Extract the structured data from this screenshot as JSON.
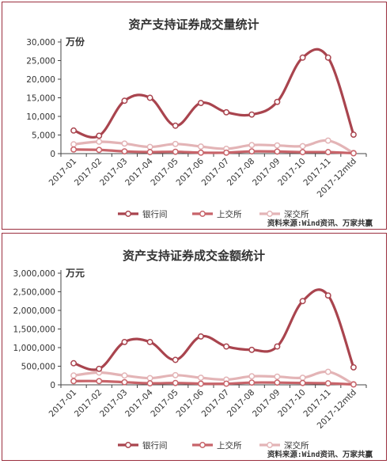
{
  "chart_data": [
    {
      "type": "line",
      "title": "资产支持证券成交量统计",
      "unit_label": "万份",
      "categories": [
        "2017-01",
        "2017-02",
        "2017-03",
        "2017-04",
        "2017-05",
        "2017-06",
        "2017-07",
        "2017-08",
        "2017-09",
        "2017-10",
        "2017-11",
        "2017-12mtd"
      ],
      "ylim": [
        0,
        30000
      ],
      "yticks": [
        "0",
        "5,000",
        "10,000",
        "15,000",
        "20,000",
        "25,000",
        "30,000"
      ],
      "ytick_values": [
        0,
        5000,
        10000,
        15000,
        20000,
        25000,
        30000
      ],
      "series": [
        {
          "name": "银行间",
          "color": "#a9444e",
          "values": [
            6200,
            4800,
            14200,
            15000,
            7500,
            13600,
            11100,
            10500,
            13900,
            25800,
            25800,
            5100
          ]
        },
        {
          "name": "上交所",
          "color": "#c8646a",
          "values": [
            1100,
            1000,
            600,
            400,
            500,
            250,
            250,
            600,
            550,
            400,
            400,
            100
          ]
        },
        {
          "name": "深交所",
          "color": "#e3b4b6",
          "values": [
            2500,
            3200,
            2700,
            1800,
            2600,
            1900,
            1300,
            2300,
            2200,
            2000,
            3500,
            200
          ]
        }
      ],
      "source": "资料来源:Wind资讯、万家共赢"
    },
    {
      "type": "line",
      "title": "资产支持证券成交金额统计",
      "unit_label": "万元",
      "categories": [
        "2017-01",
        "2017-02",
        "2017-03",
        "2017-04",
        "2017-05",
        "2017-06",
        "2017-07",
        "2017-08",
        "2017-09",
        "2017-10",
        "2017-11",
        "2017-12mtd"
      ],
      "ylim": [
        0,
        3000000
      ],
      "yticks": [
        "0",
        "500,000",
        "1,000,000",
        "1,500,000",
        "2,000,000",
        "2,500,000",
        "3,000,000"
      ],
      "ytick_values": [
        0,
        500000,
        1000000,
        1500000,
        2000000,
        2500000,
        3000000
      ],
      "series": [
        {
          "name": "银行间",
          "color": "#a9444e",
          "values": [
            580000,
            430000,
            1150000,
            1150000,
            670000,
            1300000,
            1030000,
            940000,
            1030000,
            2250000,
            2400000,
            470000
          ]
        },
        {
          "name": "上交所",
          "color": "#c8646a",
          "values": [
            100000,
            100000,
            70000,
            40000,
            50000,
            30000,
            30000,
            60000,
            60000,
            50000,
            40000,
            10000
          ]
        },
        {
          "name": "深交所",
          "color": "#e3b4b6",
          "values": [
            250000,
            330000,
            250000,
            180000,
            260000,
            190000,
            140000,
            230000,
            220000,
            190000,
            350000,
            20000
          ]
        }
      ],
      "source": "资料来源:Wind资讯、万家共赢"
    }
  ]
}
